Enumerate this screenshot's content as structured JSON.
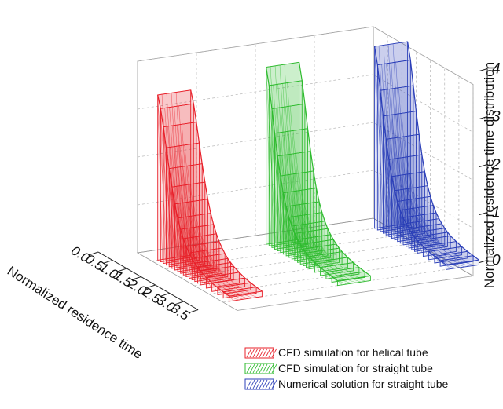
{
  "chart_data": {
    "type": "area",
    "view": "3d-waterfall",
    "xlabel": "Normalized residence time",
    "zlabel": "Normalized residence time distribution",
    "x_ticks": [
      "0.0",
      "0.5",
      "1.0",
      "1.5",
      "2.0",
      "2.5",
      "3.0",
      "3.5"
    ],
    "z_ticks": [
      "0",
      "1",
      "2",
      "3",
      "4"
    ],
    "xlim": [
      0,
      3.5
    ],
    "zlim": [
      0,
      4
    ],
    "grid": true,
    "legend_position": "bottom-right",
    "x": [
      0.5,
      0.6,
      0.7,
      0.8,
      0.9,
      1.0,
      1.1,
      1.2,
      1.3,
      1.4,
      1.5,
      1.6,
      1.7,
      1.8,
      1.9,
      2.0,
      2.2,
      2.4,
      2.6,
      2.8,
      3.0
    ],
    "series": [
      {
        "name": "CFD simulation for helical tube",
        "color": "#e8202a",
        "values": [
          3.45,
          3.2,
          2.85,
          2.45,
          2.05,
          1.7,
          1.38,
          1.12,
          0.92,
          0.76,
          0.63,
          0.53,
          0.45,
          0.38,
          0.33,
          0.29,
          0.23,
          0.18,
          0.15,
          0.13,
          0.11
        ]
      },
      {
        "name": "CFD simulation for straight tube",
        "color": "#2fbb2f",
        "values": [
          3.7,
          3.35,
          2.9,
          2.42,
          1.98,
          1.6,
          1.28,
          1.03,
          0.84,
          0.69,
          0.57,
          0.48,
          0.41,
          0.35,
          0.3,
          0.26,
          0.21,
          0.17,
          0.14,
          0.12,
          0.1
        ]
      },
      {
        "name": "Numerical solution for straight tube",
        "color": "#2b3fb8",
        "values": [
          3.8,
          3.45,
          2.95,
          2.45,
          2.0,
          1.61,
          1.29,
          1.03,
          0.84,
          0.69,
          0.57,
          0.48,
          0.41,
          0.35,
          0.3,
          0.26,
          0.21,
          0.17,
          0.14,
          0.12,
          0.1
        ]
      }
    ]
  }
}
